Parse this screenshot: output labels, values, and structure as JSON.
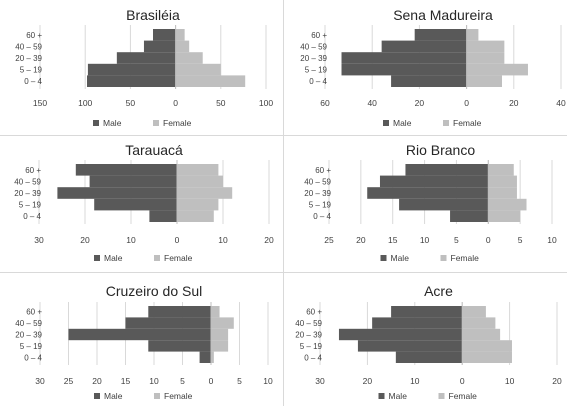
{
  "chart_data": [
    {
      "type": "bar",
      "orientation": "population-pyramid",
      "title": "Brasiléia",
      "categories": [
        "0 – 4",
        "5 – 19",
        "20 – 39",
        "40 – 59",
        "60 +"
      ],
      "series": [
        {
          "name": "Male",
          "values": [
            98,
            97,
            65,
            35,
            25
          ],
          "color": "#595959"
        },
        {
          "name": "Female",
          "values": [
            77,
            50,
            30,
            15,
            10
          ],
          "color": "#bfbfbf"
        }
      ],
      "x_ticks": [
        "150",
        "100",
        "50",
        "0",
        "50",
        "100"
      ],
      "xlim": [
        -150,
        100
      ],
      "grid": true,
      "legend_position": "bottom"
    },
    {
      "type": "bar",
      "orientation": "population-pyramid",
      "title": "Sena Madureira",
      "categories": [
        "0 – 4",
        "5 – 19",
        "20 – 39",
        "40 – 59",
        "60 +"
      ],
      "series": [
        {
          "name": "Male",
          "values": [
            32,
            53,
            53,
            36,
            22
          ],
          "color": "#595959"
        },
        {
          "name": "Female",
          "values": [
            15,
            26,
            16,
            16,
            5
          ],
          "color": "#bfbfbf"
        }
      ],
      "x_ticks": [
        "60",
        "40",
        "20",
        "0",
        "20",
        "40"
      ],
      "xlim": [
        -60,
        40
      ],
      "grid": true,
      "legend_position": "bottom"
    },
    {
      "type": "bar",
      "orientation": "population-pyramid",
      "title": "Tarauacá",
      "categories": [
        "0 – 4",
        "5 – 19",
        "20 – 39",
        "40 – 59",
        "60 +"
      ],
      "series": [
        {
          "name": "Male",
          "values": [
            6,
            18,
            26,
            19,
            22
          ],
          "color": "#595959"
        },
        {
          "name": "Female",
          "values": [
            8,
            9,
            12,
            10,
            9
          ],
          "color": "#bfbfbf"
        }
      ],
      "x_ticks": [
        "30",
        "20",
        "10",
        "0",
        "10",
        "20"
      ],
      "xlim": [
        -30,
        20
      ],
      "grid": true,
      "legend_position": "bottom"
    },
    {
      "type": "bar",
      "orientation": "population-pyramid",
      "title": "Rio Branco",
      "categories": [
        "0 – 4",
        "5 – 19",
        "20 – 39",
        "40 – 59",
        "60 +"
      ],
      "series": [
        {
          "name": "Male",
          "values": [
            6,
            14,
            19,
            17,
            13
          ],
          "color": "#595959"
        },
        {
          "name": "Female",
          "values": [
            5,
            6,
            4.5,
            4.5,
            4
          ],
          "color": "#bfbfbf"
        }
      ],
      "x_ticks": [
        "25",
        "20",
        "15",
        "10",
        "5",
        "0",
        "5",
        "10"
      ],
      "xlim": [
        -25,
        10
      ],
      "grid": true,
      "legend_position": "bottom"
    },
    {
      "type": "bar",
      "orientation": "population-pyramid",
      "title": "Cruzeiro do Sul",
      "categories": [
        "0 – 4",
        "5 – 19",
        "20 – 39",
        "40 – 59",
        "60 +"
      ],
      "series": [
        {
          "name": "Male",
          "values": [
            2,
            11,
            25,
            15,
            11
          ],
          "color": "#595959"
        },
        {
          "name": "Female",
          "values": [
            0.5,
            3,
            3,
            4,
            1.5
          ],
          "color": "#bfbfbf"
        }
      ],
      "x_ticks": [
        "30",
        "25",
        "20",
        "15",
        "10",
        "5",
        "0",
        "5",
        "10"
      ],
      "xlim": [
        -30,
        10
      ],
      "grid": true,
      "legend_position": "bottom"
    },
    {
      "type": "bar",
      "orientation": "population-pyramid",
      "title": "Acre",
      "categories": [
        "0 – 4",
        "5 – 19",
        "20 – 39",
        "40 – 59",
        "60 +"
      ],
      "series": [
        {
          "name": "Male",
          "values": [
            14,
            22,
            26,
            19,
            15
          ],
          "color": "#595959"
        },
        {
          "name": "Female",
          "values": [
            10.5,
            10.5,
            8,
            7,
            5
          ],
          "color": "#bfbfbf"
        }
      ],
      "x_ticks": [
        "30",
        "20",
        "10",
        "0",
        "10",
        "20"
      ],
      "xlim": [
        -30,
        20
      ],
      "grid": true,
      "legend_position": "bottom"
    }
  ]
}
